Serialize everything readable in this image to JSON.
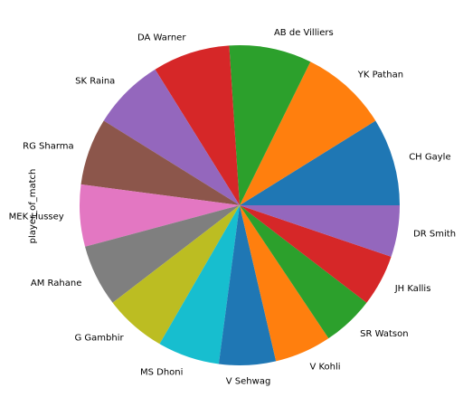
{
  "chart_data": {
    "type": "pie",
    "ylabel": "player_of_match",
    "categories": [
      "CH Gayle",
      "YK Pathan",
      "AB de Villiers",
      "DA Warner",
      "SK Raina",
      "RG Sharma",
      "MEK Hussey",
      "AM Rahane",
      "G Gambhir",
      "MS Dhoni",
      "V Sehwag",
      "V Kohli",
      "SR Watson",
      "JH Kallis",
      "DR Smith"
    ],
    "values": [
      17,
      17,
      16,
      15,
      14,
      13,
      12,
      12,
      12,
      12,
      11,
      11,
      10,
      10,
      10
    ],
    "colors": [
      "#1f77b4",
      "#ff7f0e",
      "#2ca02c",
      "#d62728",
      "#9467bd",
      "#8c564b",
      "#e377c2",
      "#7f7f7f",
      "#bcbd22",
      "#17becf",
      "#1f77b4",
      "#ff7f0e",
      "#2ca02c",
      "#d62728",
      "#9467bd"
    ]
  }
}
